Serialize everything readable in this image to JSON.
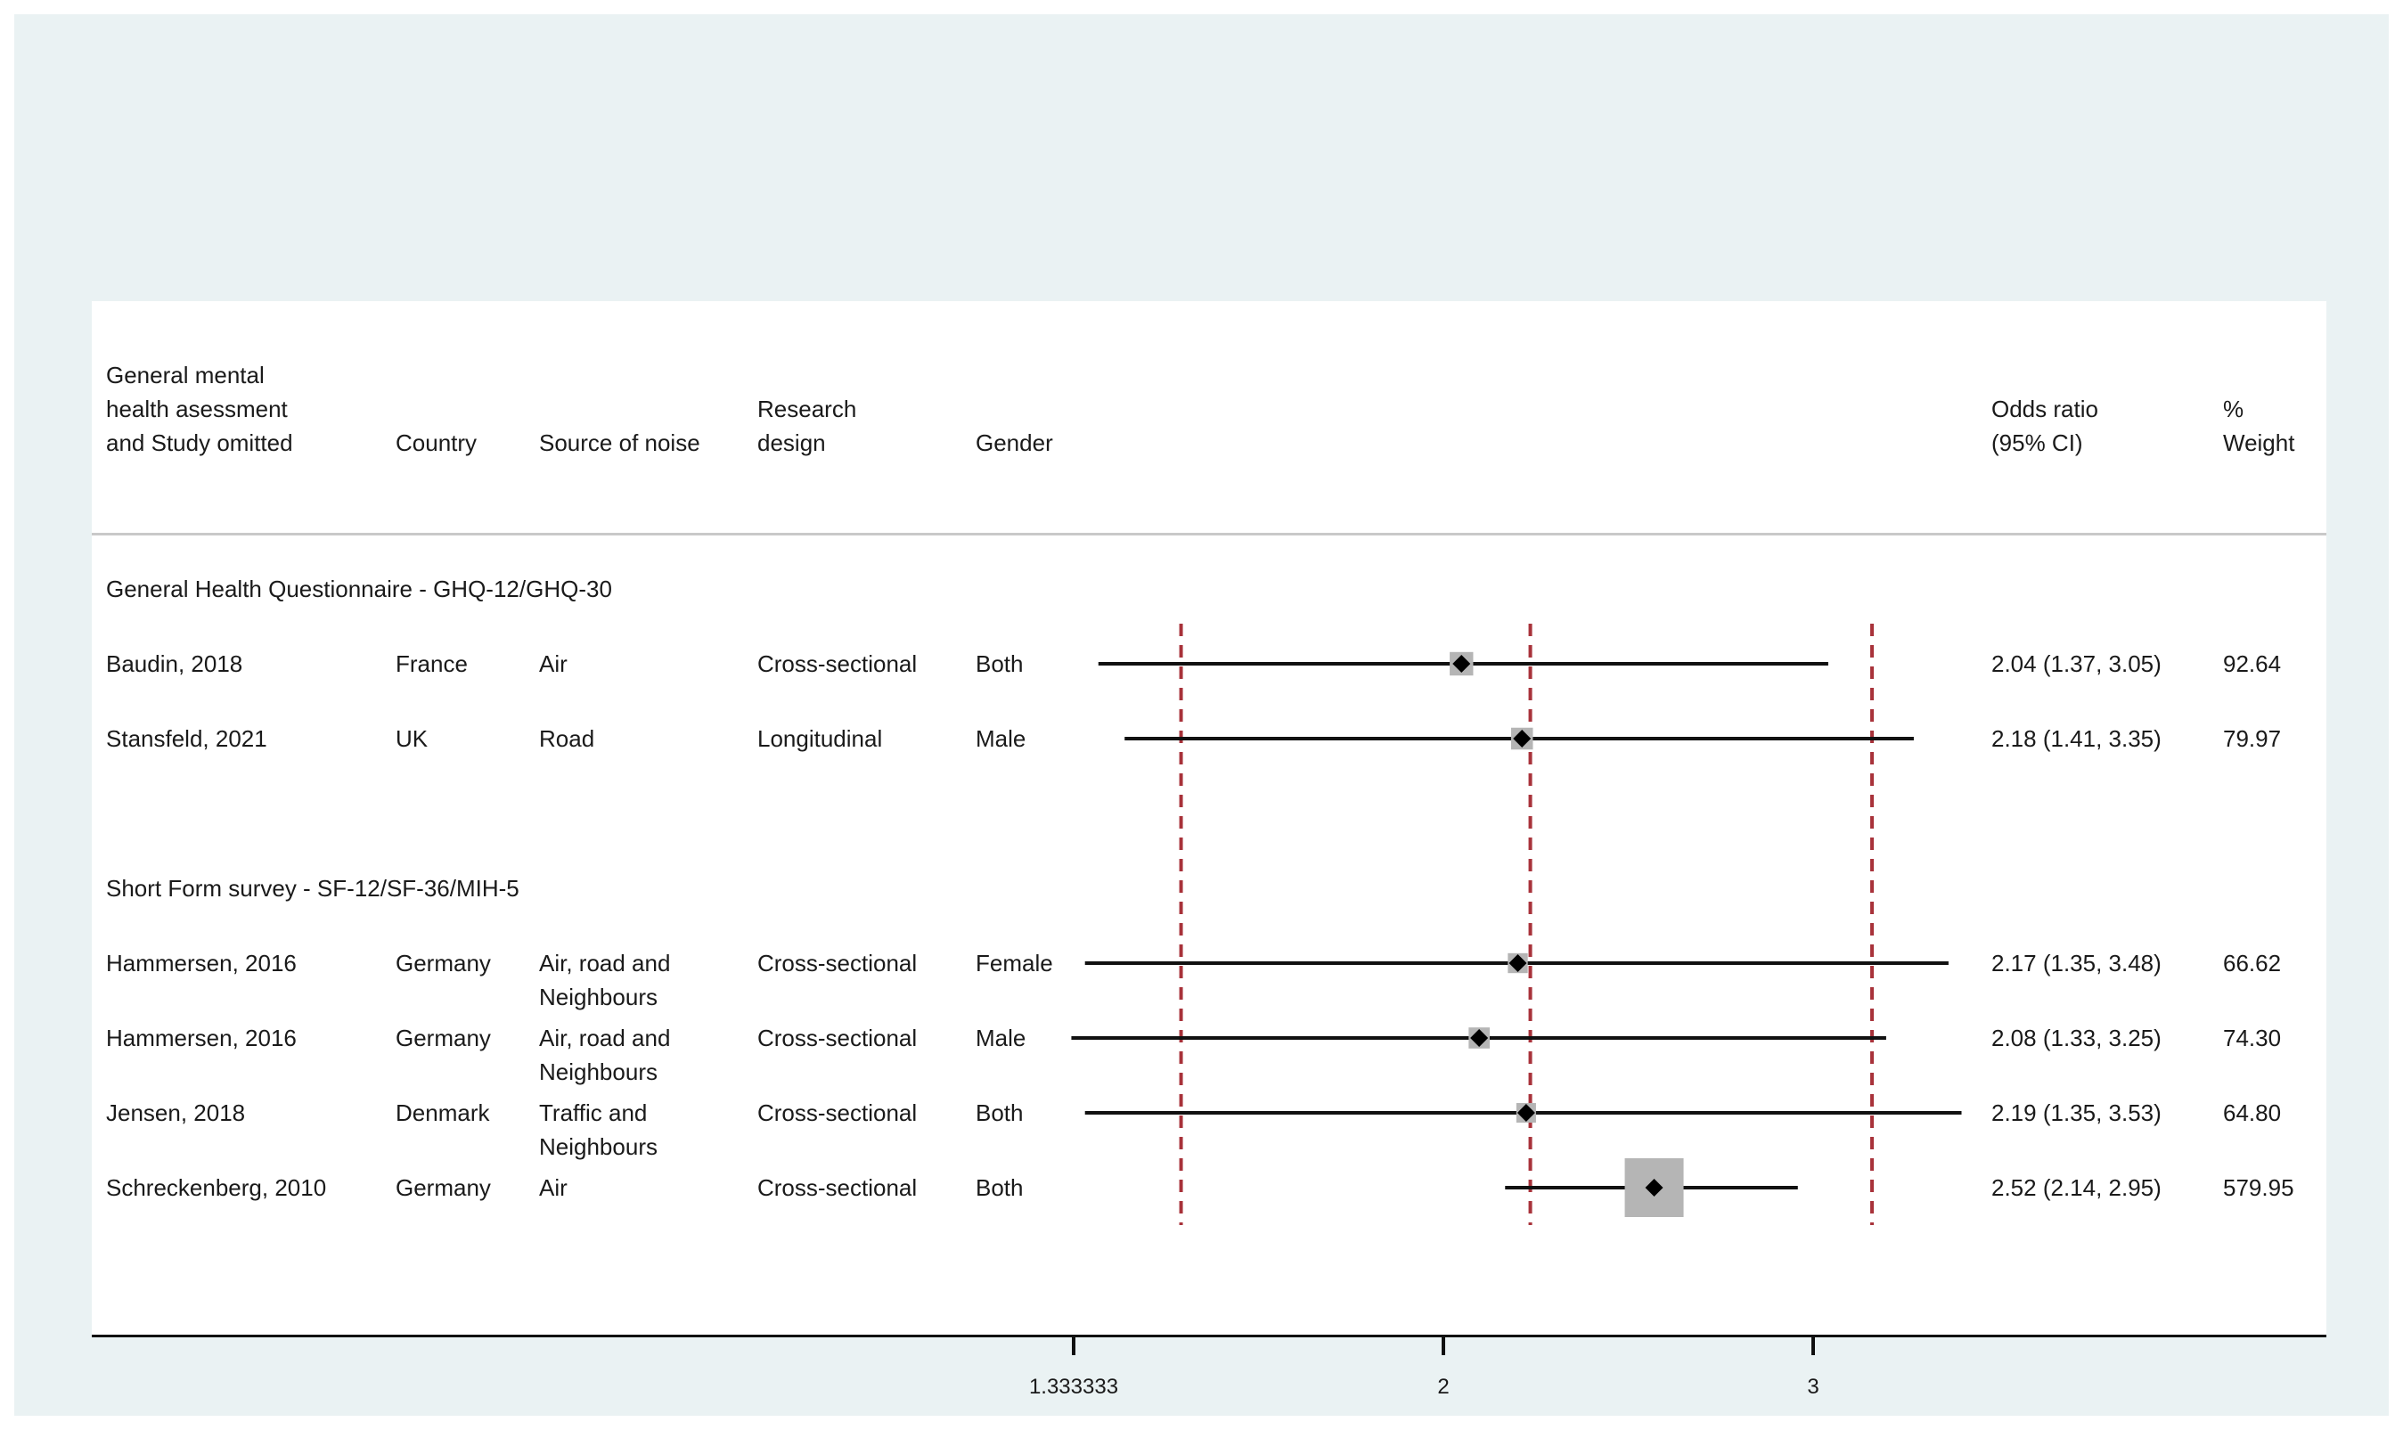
{
  "colors": {
    "background_frame": "#eaf2f3",
    "panel": "#ffffff",
    "ci_line": "#111111",
    "weight_box": "#b5b5b5",
    "point": "#000000",
    "reference_lines": "#a8323a"
  },
  "headers": {
    "study_line1": "General mental",
    "study_line2": "health asessment",
    "study_line3": "and Study omitted",
    "country": "Country",
    "source": "Source of noise",
    "design_line1": "Research",
    "design_line2": "design",
    "gender": "Gender",
    "or_line1": "Odds ratio",
    "or_line2": "(95% CI)",
    "weight_line1": "%",
    "weight_line2": "Weight"
  },
  "groups": [
    {
      "label": "General Health Questionnaire - GHQ-12/GHQ-30",
      "rows": [
        {
          "study": "Baudin, 2018",
          "country": "France",
          "source": [
            "Air"
          ],
          "design": "Cross-sectional",
          "gender": "Both",
          "or_text": "2.04 (1.37, 3.05)",
          "weight": "92.64"
        },
        {
          "study": "Stansfeld, 2021",
          "country": "UK",
          "source": [
            "Road"
          ],
          "design": "Longitudinal",
          "gender": "Male",
          "or_text": "2.18 (1.41, 3.35)",
          "weight": "79.97"
        }
      ]
    },
    {
      "label": "Short Form survey - SF-12/SF-36/MIH-5",
      "rows": [
        {
          "study": "Hammersen, 2016",
          "country": "Germany",
          "source": [
            "Air, road and",
            "Neighbours"
          ],
          "design": "Cross-sectional",
          "gender": "Female",
          "or_text": "2.17 (1.35, 3.48)",
          "weight": "66.62"
        },
        {
          "study": "Hammersen, 2016",
          "country": "Germany",
          "source": [
            "Air, road and",
            "Neighbours"
          ],
          "design": "Cross-sectional",
          "gender": "Male",
          "or_text": "2.08 (1.33, 3.25)",
          "weight": "74.30"
        },
        {
          "study": "Jensen, 2018",
          "country": "Denmark",
          "source": [
            "Traffic and",
            "Neighbours"
          ],
          "design": "Cross-sectional",
          "gender": "Both",
          "or_text": "2.19 (1.35, 3.53)",
          "weight": "64.80"
        },
        {
          "study": "Schreckenberg, 2010",
          "country": "Germany",
          "source": [
            "Air"
          ],
          "design": "Cross-sectional",
          "gender": "Both",
          "or_text": "2.52 (2.14, 2.95)",
          "weight": "579.95"
        }
      ]
    }
  ],
  "chart_data": {
    "type": "forest",
    "x_scale": "log",
    "x_ticks": [
      {
        "value": 1.333333,
        "label": "1.333333"
      },
      {
        "value": 2,
        "label": "2"
      },
      {
        "value": 3,
        "label": "3"
      }
    ],
    "reference_lines": [
      1.5,
      2.2,
      3.2
    ],
    "series": [
      {
        "study": "Baudin, 2018",
        "or": 2.04,
        "lo": 1.37,
        "hi": 3.05,
        "weight": 92.64
      },
      {
        "study": "Stansfeld, 2021",
        "or": 2.18,
        "lo": 1.41,
        "hi": 3.35,
        "weight": 79.97
      },
      {
        "study": "Hammersen, 2016",
        "or": 2.17,
        "lo": 1.35,
        "hi": 3.48,
        "weight": 66.62
      },
      {
        "study": "Hammersen, 2016",
        "or": 2.08,
        "lo": 1.33,
        "hi": 3.25,
        "weight": 74.3
      },
      {
        "study": "Jensen, 2018",
        "or": 2.19,
        "lo": 1.35,
        "hi": 3.53,
        "weight": 64.8
      },
      {
        "study": "Schreckenberg, 2010",
        "or": 2.52,
        "lo": 2.14,
        "hi": 2.95,
        "weight": 579.95
      }
    ]
  }
}
